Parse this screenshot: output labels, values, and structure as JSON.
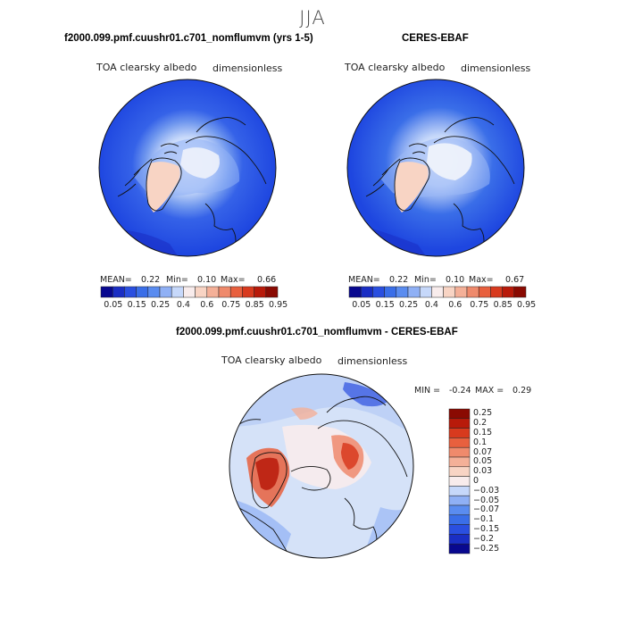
{
  "season": "JJA",
  "panels": {
    "model": {
      "title": "f2000.099.pmf.cuushr01.c701_nomflumvm (yrs 1-5)",
      "variable": "TOA clearsky albedo",
      "units": "dimensionless",
      "stats": {
        "mean_label": "MEAN=",
        "mean": "0.22",
        "min_label": "Min=",
        "min": "0.10",
        "max_label": "Max=",
        "max": "0.66"
      }
    },
    "obs": {
      "title": "CERES-EBAF",
      "variable": "TOA clearsky albedo",
      "units": "dimensionless",
      "stats": {
        "mean_label": "MEAN=",
        "mean": "0.22",
        "min_label": "Min=",
        "min": "0.10",
        "max_label": "Max=",
        "max": "0.67"
      }
    },
    "diff": {
      "title": "f2000.099.pmf.cuushr01.c701_nomflumvm - CERES-EBAF",
      "variable": "TOA clearsky albedo",
      "units": "dimensionless",
      "stats": {
        "min_label": "MIN =",
        "min": "-0.24",
        "max_label": "MAX =",
        "max": "0.29"
      }
    }
  },
  "colorbar_abs": {
    "tick_labels": [
      "0.05",
      "0.15",
      "0.25",
      "0.4",
      "0.6",
      "0.75",
      "0.85",
      "0.95"
    ],
    "colors": [
      "#08088f",
      "#1a2ec4",
      "#2a4fe0",
      "#3a6ee8",
      "#5a8cf0",
      "#8fb0f5",
      "#c6d8fa",
      "#f8ecec",
      "#f8d4c4",
      "#f4b098",
      "#ef8a6c",
      "#e8603e",
      "#d83a1e",
      "#b81a0a",
      "#8a0a02"
    ]
  },
  "colorbar_diff": {
    "tick_labels": [
      "0.25",
      "0.2",
      "0.15",
      "0.1",
      "0.07",
      "0.05",
      "0.03",
      "0",
      "−0.03",
      "−0.05",
      "−0.07",
      "−0.1",
      "−0.15",
      "−0.2",
      "−0.25"
    ],
    "colors": [
      "#8a0a02",
      "#b81a0a",
      "#d83a1e",
      "#e8603e",
      "#ef8a6c",
      "#f4b098",
      "#f8d4c4",
      "#f8ecec",
      "#c6d8fa",
      "#8fb0f5",
      "#5a8cf0",
      "#3a6ee8",
      "#2a4fe0",
      "#1a2ec4",
      "#08088f"
    ]
  },
  "colors": {
    "ocean_deep": "#1e46e0",
    "ocean_mid": "#3562e8",
    "ice_light": "#c6d8fa",
    "ice_white": "#eef2fb",
    "greenland": "#f8d4c4",
    "diff_base": "#d5e2f8",
    "diff_pos": "#d83a1e",
    "diff_neg": "#3a6ee8"
  }
}
